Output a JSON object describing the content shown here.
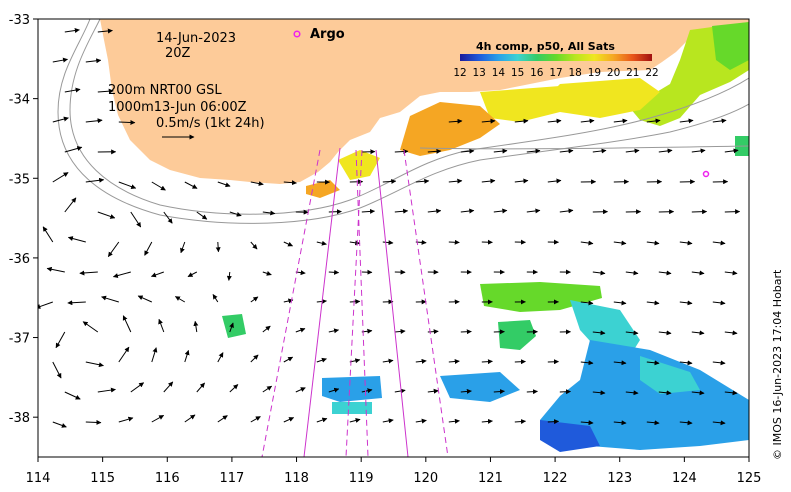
{
  "map": {
    "date": "14-Jun-2023",
    "hour": "20Z",
    "contour_note": "200m  NRT00 GSL",
    "contour_note2": "1000m13-Jun 06:00Z",
    "scale_note": "0.5m/s (1kt 24h)",
    "legend_argo": "Argo",
    "colorbar_title": "4h comp, p50, All Sats",
    "colorbar_ticks": [
      "12",
      "13",
      "14",
      "15",
      "16",
      "17",
      "18",
      "19",
      "20",
      "21",
      "22"
    ],
    "credit": "© IMOS 16-Jun-2023 17:04 Hobart",
    "x_ticks": [
      "114",
      "115",
      "116",
      "117",
      "118",
      "119",
      "120",
      "121",
      "122",
      "123",
      "124",
      "125"
    ],
    "y_ticks": [
      "-33",
      "-34",
      "-35",
      "-36",
      "-37",
      "-38"
    ],
    "x_range": [
      114,
      125
    ],
    "y_range": [
      -38.5,
      -33
    ],
    "colors": {
      "land": "#fdcb99",
      "track": "#cc33cc",
      "argo_marker": "#ee22ee",
      "colormap": [
        "#1a1a9a",
        "#1f5adb",
        "#2aa0e8",
        "#3cd2d2",
        "#33cc66",
        "#66d92a",
        "#b8e61f",
        "#f0e61f",
        "#f5a623",
        "#e8551a",
        "#a01010"
      ]
    },
    "argo_floats": [
      {
        "lon": 124.3,
        "lat": -34.93
      }
    ]
  }
}
